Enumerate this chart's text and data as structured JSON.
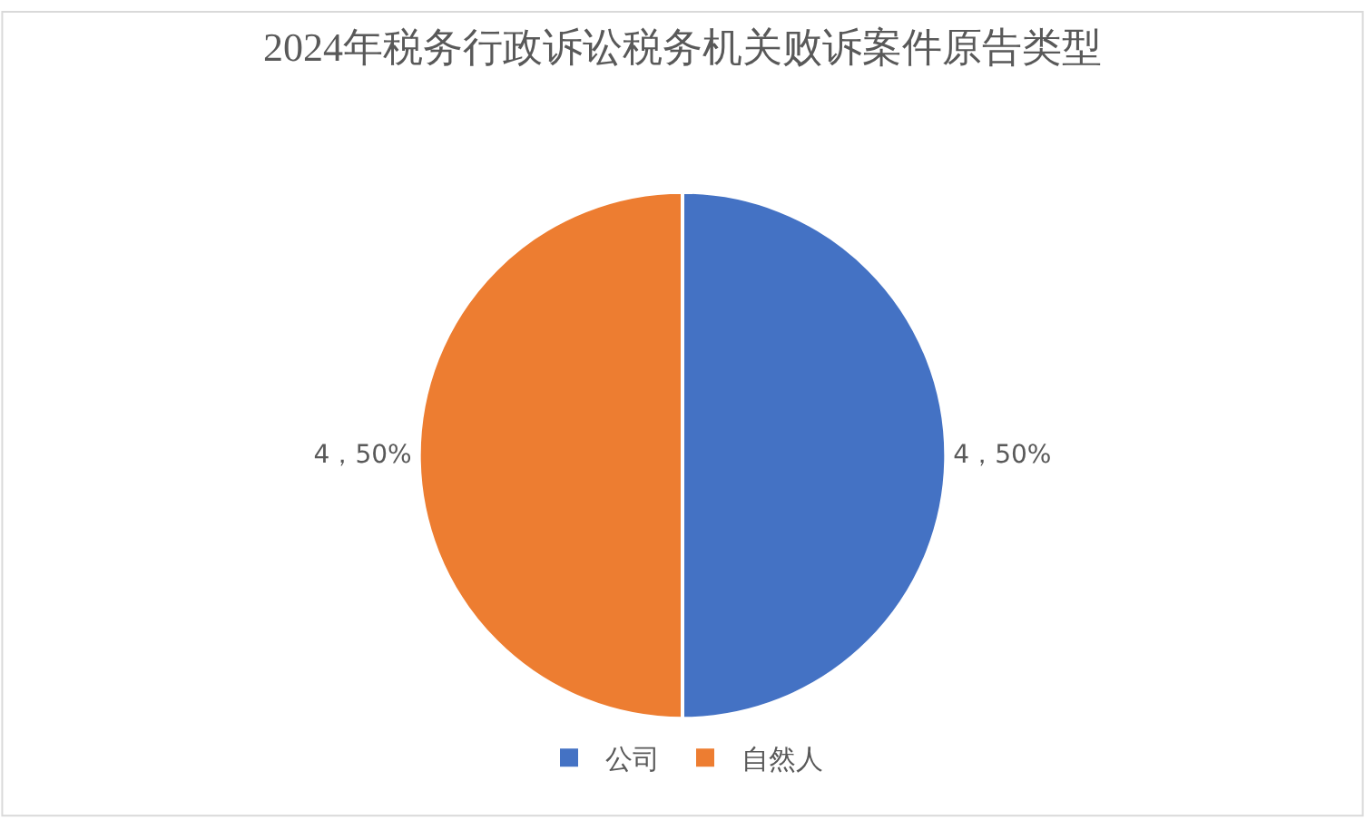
{
  "chart_data": {
    "type": "pie",
    "title": "2024年税务行政诉讼税务机关败诉案件原告类型",
    "categories": [
      "公司",
      "自然人"
    ],
    "values": [
      4,
      4
    ],
    "colors": [
      "#4472c4",
      "#ed7d31"
    ],
    "value_labels": [
      "4，50%",
      "4，50%"
    ],
    "legend": "bottom"
  }
}
